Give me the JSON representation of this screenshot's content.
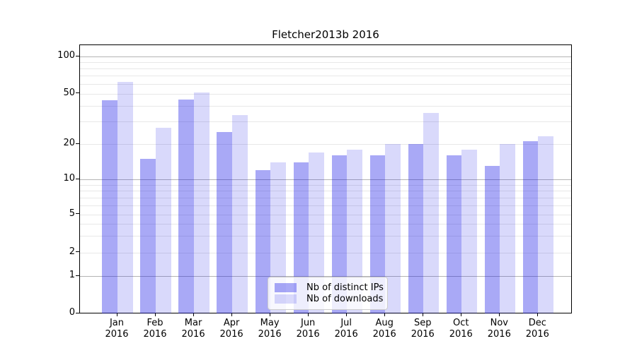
{
  "chart_data": {
    "type": "bar",
    "title": "Fletcher2013b 2016",
    "categories": [
      "Jan",
      "Feb",
      "Mar",
      "Apr",
      "May",
      "Jun",
      "Jul",
      "Aug",
      "Sep",
      "Oct",
      "Nov",
      "Dec"
    ],
    "x_tick_year": "2016",
    "series": [
      {
        "name": "Nb of distinct IPs",
        "key": "ips",
        "color": "rgba(17,17,229,0.36)",
        "values": [
          44,
          15,
          45,
          25,
          12,
          14,
          16,
          16,
          20,
          16,
          13,
          21
        ]
      },
      {
        "name": "Nb of downloads",
        "key": "downloads",
        "color": "rgba(17,17,229,0.16)",
        "values": [
          62,
          27,
          51,
          34,
          14,
          17,
          18,
          20,
          35,
          18,
          20,
          23
        ]
      }
    ],
    "y_ticks": [
      0,
      1,
      2,
      5,
      10,
      20,
      50,
      100
    ],
    "y_major_gridlines": [
      1,
      10,
      100
    ],
    "y_minor_gridlines": [
      3,
      4,
      6,
      7,
      8,
      9,
      30,
      40,
      60,
      70,
      80,
      90
    ],
    "y_scale": "symlog",
    "ylim": [
      0,
      124
    ],
    "grid": true,
    "legend_position": "lower center",
    "colors": {
      "minor_grid": "#e8e8e8",
      "major_grid": "#b4b4b4",
      "spine": "#000000",
      "text": "#000000",
      "legend_border": "#cccccc"
    }
  }
}
